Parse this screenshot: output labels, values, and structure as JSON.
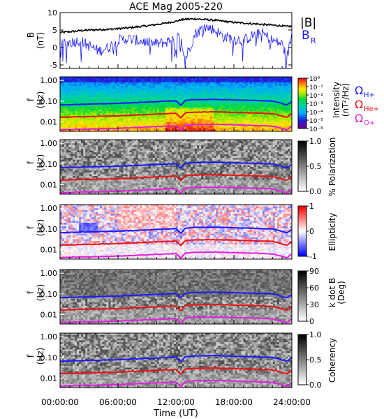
{
  "figure": {
    "title": "ACE Mag 2005-220",
    "xlabel": "Time (UT)",
    "time_ticks": [
      "00:00:00",
      "06:00:00",
      "12:00:00",
      "18:00:00",
      "24:00:00"
    ]
  },
  "chart_data": [
    {
      "type": "line",
      "panel": "magnetic-field",
      "ylabel": "B",
      "yunit": "(nT)",
      "ylim": [
        -6,
        10
      ],
      "yticks": [
        "-5",
        "0",
        "5",
        "10"
      ],
      "x_hours": [
        0,
        1,
        2,
        3,
        4,
        5,
        6,
        7,
        8,
        9,
        10,
        11,
        12,
        12.5,
        13,
        14,
        15,
        16,
        17,
        18,
        19,
        20,
        21,
        22,
        23,
        23.5,
        24
      ],
      "series": [
        {
          "name": "|B|",
          "color": "#000000",
          "values": [
            4.3,
            4.5,
            4.8,
            5.0,
            5.1,
            5.2,
            5.4,
            5.6,
            5.9,
            6.2,
            6.6,
            7.0,
            7.5,
            7.9,
            8.1,
            8.2,
            8.0,
            7.8,
            7.5,
            7.2,
            7.0,
            6.8,
            6.6,
            6.4,
            6.2,
            6.0,
            6.1
          ]
        },
        {
          "name": "B",
          "subscript": "R",
          "color": "#1a1aff",
          "values": [
            0.5,
            1.5,
            2.0,
            0.5,
            -1.0,
            0.0,
            2.0,
            2.5,
            2.0,
            1.5,
            1.0,
            1.5,
            3.0,
            2.5,
            -3.0,
            4.0,
            6.0,
            5.0,
            3.0,
            2.5,
            2.0,
            3.5,
            4.0,
            2.0,
            1.0,
            -3.0,
            4.0
          ]
        }
      ]
    },
    {
      "type": "heatmap",
      "panel": "power-spectrum",
      "ylabel": "f",
      "yunit": "(Hz)",
      "yticks": [
        "1.00",
        "0.10",
        "0.01"
      ],
      "colorbar_label": "Intensity",
      "colorbar_unit": "(nT²/Hz)",
      "colorbar_ticks": [
        "10⁰",
        "10⁻¹",
        "10⁻²",
        "10⁻³",
        "10⁻⁴",
        "10⁻⁵",
        "10⁻⁶"
      ],
      "colormap": "rainbow"
    },
    {
      "type": "heatmap",
      "panel": "polarization",
      "ylabel": "f",
      "yunit": "(Hz)",
      "yticks": [
        "1.00",
        "0.10",
        "0.01"
      ],
      "colorbar_label": "% Polarization",
      "colorbar_ticks": [
        "1.0",
        "0.5",
        "0.0"
      ],
      "colormap": "gray"
    },
    {
      "type": "heatmap",
      "panel": "ellipticity",
      "ylabel": "f",
      "yunit": "(Hz)",
      "yticks": [
        "1.00",
        "0.10",
        "0.01"
      ],
      "colorbar_label": "Ellipticity",
      "colorbar_ticks": [
        "1",
        "0",
        "-1"
      ],
      "colormap": "blue-white-red"
    },
    {
      "type": "heatmap",
      "panel": "wave-normal-angle",
      "ylabel": "f",
      "yunit": "(Hz)",
      "yticks": [
        "1.00",
        "0.10",
        "0.01"
      ],
      "colorbar_label": "k dot B",
      "colorbar_unit": "(Deg)",
      "colorbar_ticks": [
        "90",
        "60",
        "30",
        "0"
      ],
      "colormap": "gray"
    },
    {
      "type": "heatmap",
      "panel": "coherency",
      "ylabel": "f",
      "yunit": "(Hz)",
      "yticks": [
        "1.00",
        "0.10",
        "0.01"
      ],
      "colorbar_label": "Coherency",
      "colorbar_ticks": [
        "1.0",
        "0.5",
        "0.0"
      ],
      "colormap": "gray"
    }
  ],
  "gyrofrequency_lines": {
    "x_hours": [
      0,
      2,
      4,
      6,
      8,
      10,
      12,
      12.5,
      13,
      14,
      16,
      18,
      20,
      22,
      23.5,
      24
    ],
    "series": [
      {
        "name": "Ω",
        "subscript": "H+",
        "color": "#1a1aff",
        "values_hz": [
          0.066,
          0.07,
          0.074,
          0.078,
          0.086,
          0.095,
          0.104,
          0.06,
          0.11,
          0.118,
          0.122,
          0.115,
          0.108,
          0.1,
          0.065,
          0.095
        ]
      },
      {
        "name": "Ω",
        "subscript": "He+",
        "color": "#ee1111",
        "values_hz": [
          0.0165,
          0.0175,
          0.0185,
          0.0195,
          0.0215,
          0.0238,
          0.026,
          0.015,
          0.0275,
          0.0295,
          0.0305,
          0.0288,
          0.027,
          0.025,
          0.016,
          0.024
        ]
      },
      {
        "name": "Ω",
        "subscript": "O+",
        "color": "#e020e0",
        "values_hz": [
          0.0041,
          0.0044,
          0.0046,
          0.0049,
          0.0054,
          0.0059,
          0.0065,
          0.0038,
          0.0069,
          0.0074,
          0.0076,
          0.0072,
          0.0068,
          0.0062,
          0.004,
          0.006
        ]
      }
    ]
  }
}
